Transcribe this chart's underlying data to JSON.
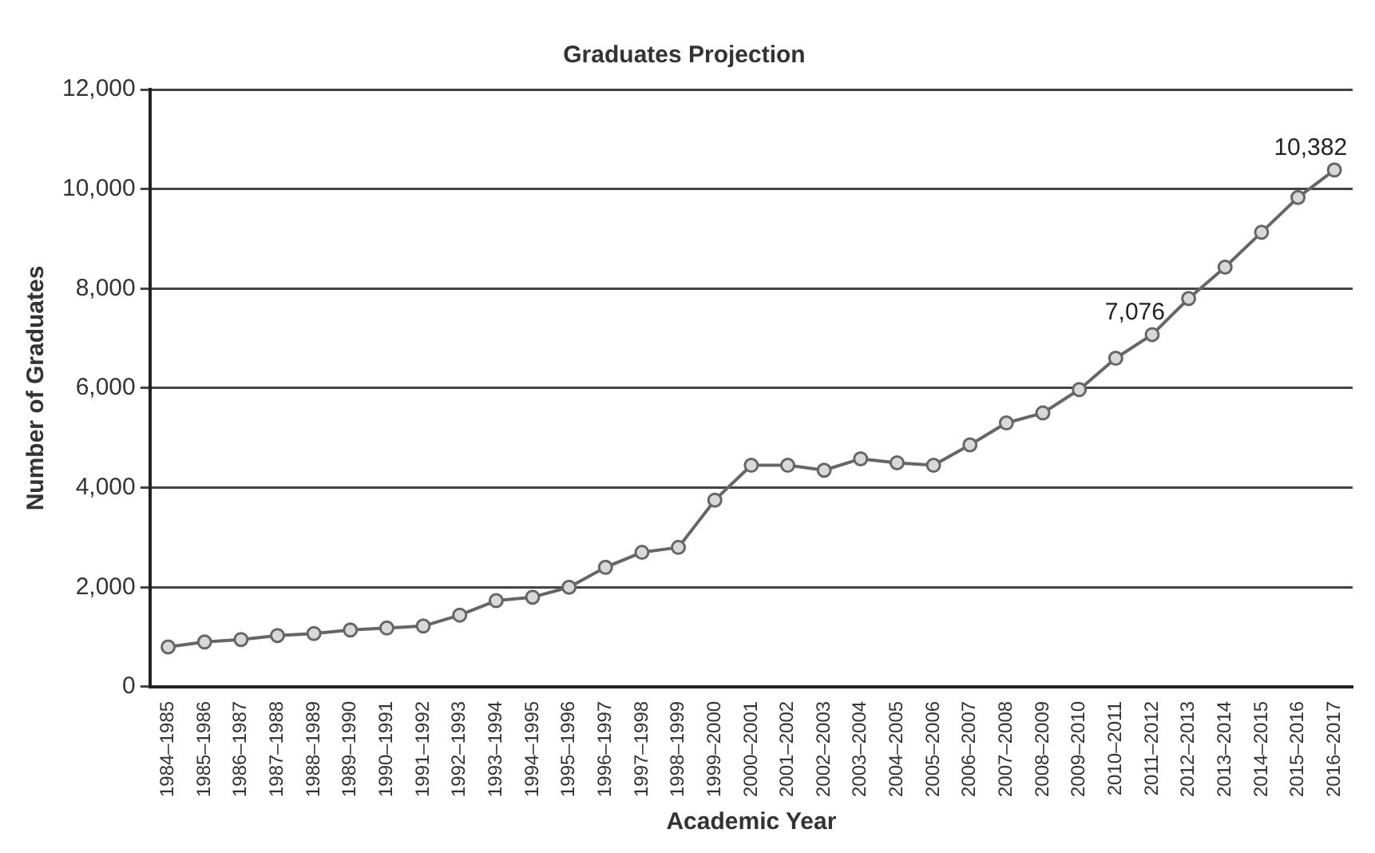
{
  "chart_data": {
    "type": "line",
    "title": "Graduates Projection",
    "xlabel": "Academic Year",
    "ylabel": "Number of Graduates",
    "categories": [
      "1984–1985",
      "1985–1986",
      "1986–1987",
      "1987–1988",
      "1988–1989",
      "1989–1990",
      "1990–1991",
      "1991–1992",
      "1992–1993",
      "1993–1994",
      "1994–1995",
      "1995–1996",
      "1996–1997",
      "1997–1998",
      "1998–1999",
      "1999–2000",
      "2000–2001",
      "2001–2002",
      "2002–2003",
      "2003–2004",
      "2004–2005",
      "2005–2006",
      "2006–2007",
      "2007–2008",
      "2008–2009",
      "2009–2010",
      "2010–2011",
      "2011–2012",
      "2012–2013",
      "2013–2014",
      "2014–2015",
      "2015–2016",
      "2016–2017"
    ],
    "series": [
      {
        "color": "#666666",
        "values": [
          800,
          900,
          950,
          1030,
          1070,
          1140,
          1180,
          1220,
          1440,
          1730,
          1800,
          2000,
          2400,
          2700,
          2800,
          3750,
          4450,
          4450,
          4350,
          4580,
          4500,
          4450,
          4860,
          5300,
          5500,
          5970,
          6600,
          7076,
          7800,
          8430,
          9130,
          9830,
          10382
        ],
        "value_labels": [
          null,
          null,
          null,
          null,
          null,
          null,
          null,
          null,
          null,
          null,
          null,
          null,
          null,
          null,
          null,
          null,
          null,
          null,
          null,
          null,
          null,
          null,
          null,
          null,
          null,
          null,
          null,
          "7,076",
          null,
          null,
          null,
          null,
          "10,382"
        ]
      }
    ],
    "ylim": [
      0,
      12000
    ],
    "yticks": [
      {
        "value": 0,
        "label": "0"
      },
      {
        "value": 2000,
        "label": "2,000"
      },
      {
        "value": 4000,
        "label": "4,000"
      },
      {
        "value": 6000,
        "label": "6,000"
      },
      {
        "value": 8000,
        "label": "8,000"
      },
      {
        "value": 10000,
        "label": "10,000"
      },
      {
        "value": 12000,
        "label": "12,000"
      }
    ],
    "grid": "y",
    "legend": false,
    "marker": "circle",
    "line_style": "solid"
  }
}
